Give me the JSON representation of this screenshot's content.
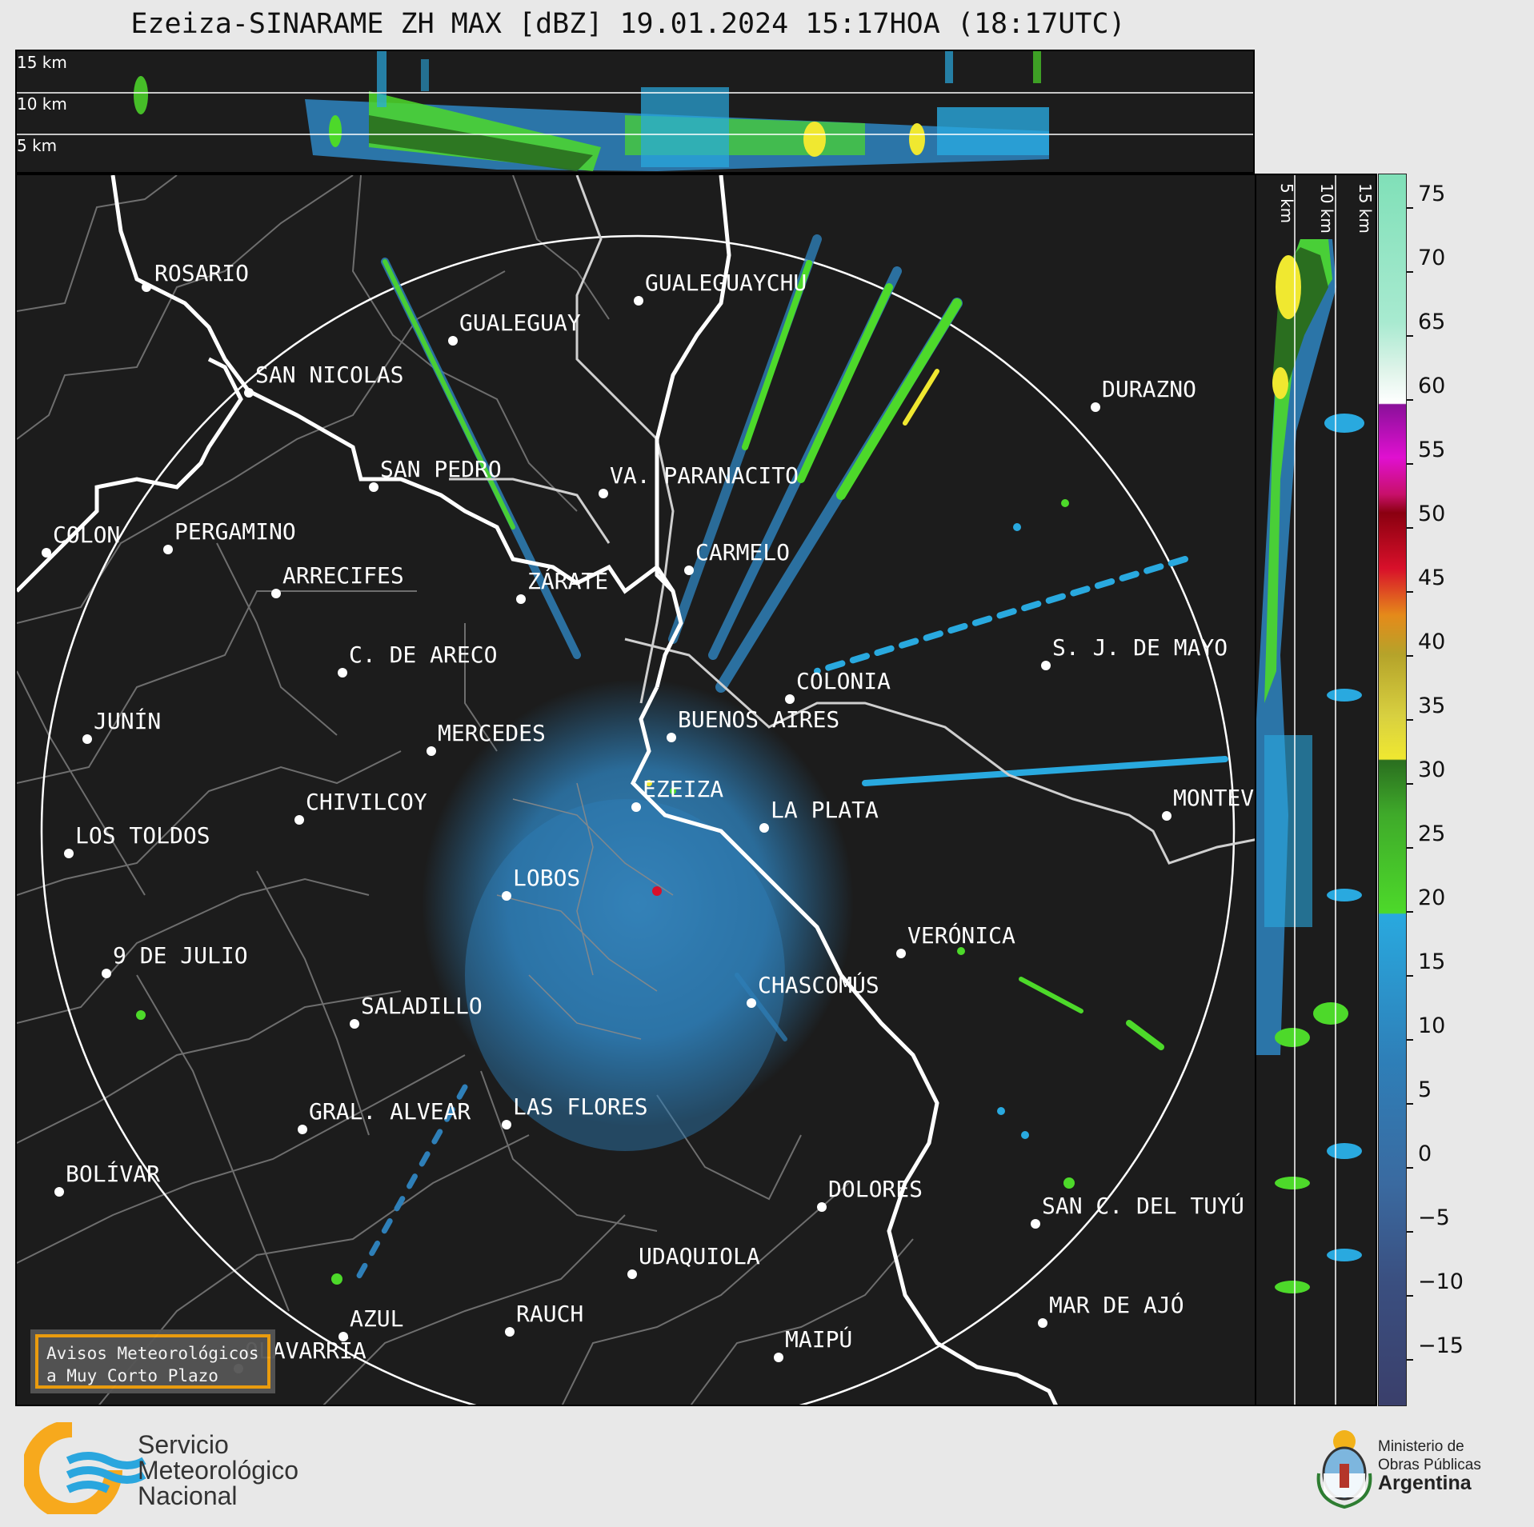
{
  "title": "Ezeiza-SINARAME ZH MAX [dBZ] 19.01.2024 15:17HOA (18:17UTC)",
  "top_panel": {
    "altitude_labels": [
      "15 km",
      "10 km",
      "5 km"
    ]
  },
  "side_panel": {
    "altitude_labels": [
      "5 km",
      "10 km",
      "15 km"
    ]
  },
  "colorbar": {
    "unit": "dBZ",
    "ticks": [
      "75",
      "70",
      "65",
      "60",
      "55",
      "50",
      "45",
      "40",
      "35",
      "30",
      "25",
      "20",
      "15",
      "10",
      "5",
      "0",
      "−5",
      "−10",
      "−15"
    ],
    "min": -19,
    "max": 77,
    "colors": {
      "low": "#3a3f6b",
      "blue": "#2e7fb8",
      "cyan": "#29a9df",
      "green": "#4dd92a",
      "darkgreen": "#2a6e1f",
      "yellow": "#f0e830",
      "olive": "#b5a32a",
      "orange": "#e58a1a",
      "red": "#d8102a",
      "darkred": "#8a0010",
      "magenta": "#e010d0",
      "purple": "#8a109a",
      "white": "#ffffff",
      "mint": "#80e0b8"
    }
  },
  "radar_site": "EZEIZA",
  "cities": [
    {
      "name": "ROSARIO"
    },
    {
      "name": "GUALEGUAYCHU"
    },
    {
      "name": "GUALEGUAY"
    },
    {
      "name": "SAN NICOLAS"
    },
    {
      "name": "DURAZNO"
    },
    {
      "name": "SAN PEDRO"
    },
    {
      "name": "VA. PARANACITO"
    },
    {
      "name": "COLON"
    },
    {
      "name": "PERGAMINO"
    },
    {
      "name": "CARMELO"
    },
    {
      "name": "ARRECIFES"
    },
    {
      "name": "ZÁRATE"
    },
    {
      "name": "S. J. DE MAYO"
    },
    {
      "name": "C. DE ARECO"
    },
    {
      "name": "COLONIA"
    },
    {
      "name": "BUENOS AIRES"
    },
    {
      "name": "JUNÍN"
    },
    {
      "name": "MERCEDES"
    },
    {
      "name": "EZEIZA"
    },
    {
      "name": "MONTEVIDEO"
    },
    {
      "name": "CHIVILCOY"
    },
    {
      "name": "LA PLATA"
    },
    {
      "name": "LOS TOLDOS"
    },
    {
      "name": "LOBOS"
    },
    {
      "name": "VERÓNICA"
    },
    {
      "name": "9 DE JULIO"
    },
    {
      "name": "CHASCOMÚS"
    },
    {
      "name": "SALADILLO"
    },
    {
      "name": "GRAL. ALVEAR"
    },
    {
      "name": "LAS FLORES"
    },
    {
      "name": "BOLÍVAR"
    },
    {
      "name": "DOLORES"
    },
    {
      "name": "SAN C. DEL TUYÚ"
    },
    {
      "name": "UDAQUIOLA"
    },
    {
      "name": "MAR DE AJÓ"
    },
    {
      "name": "RAUCH"
    },
    {
      "name": "AZUL"
    },
    {
      "name": "OLAVARRÍA"
    },
    {
      "name": "MAIPÚ"
    }
  ],
  "notice": {
    "line1": "Avisos Meteorológicos",
    "line2": "a Muy Corto Plazo"
  },
  "footer": {
    "smn": [
      "Servicio",
      "Meteorológico",
      "Nacional"
    ],
    "ministry": {
      "line1": "Ministerio de",
      "line2": "Obras Públicas",
      "line3": "Argentina"
    }
  }
}
